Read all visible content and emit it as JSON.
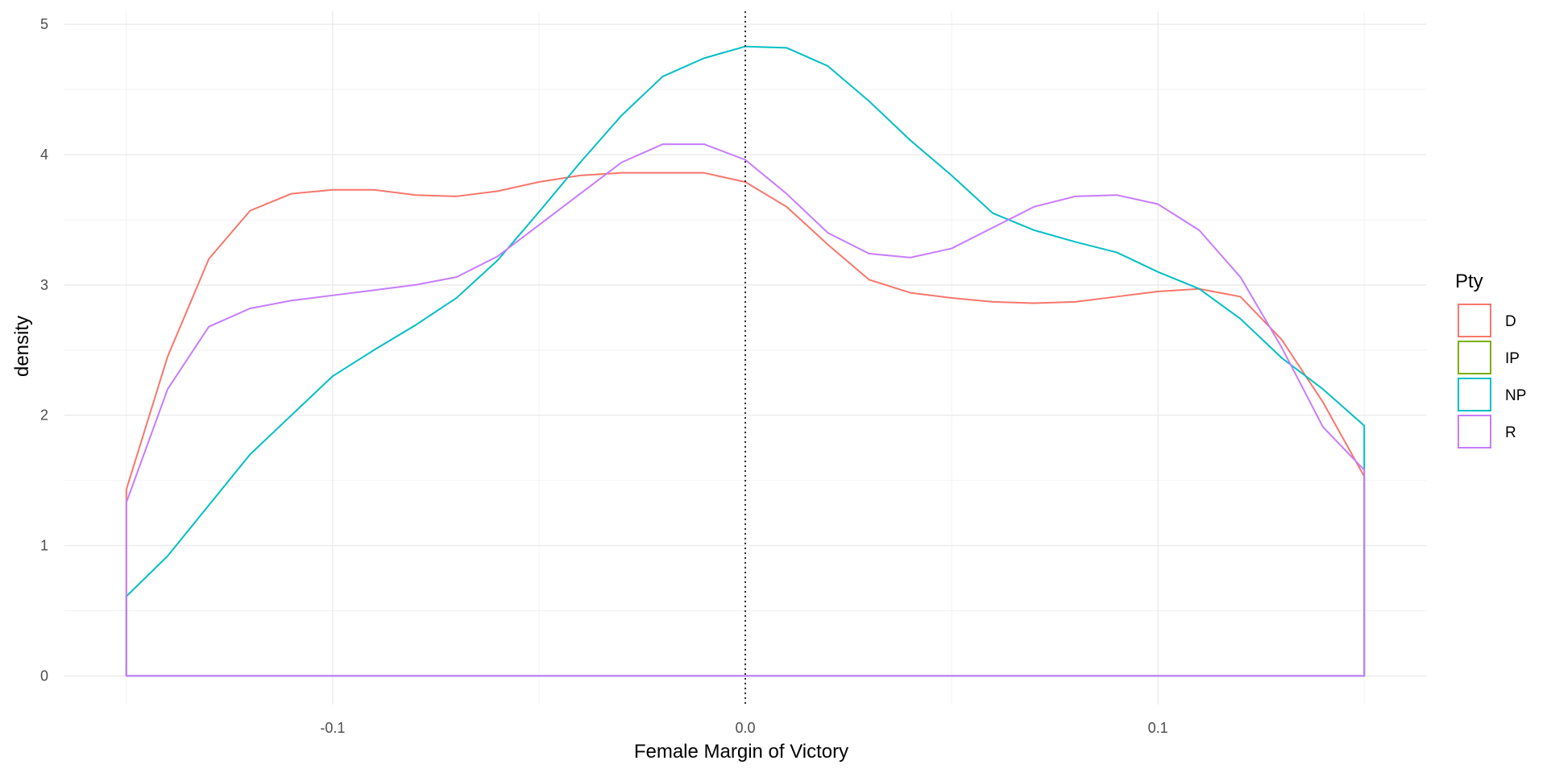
{
  "chart_data": {
    "type": "line",
    "title": "",
    "xlabel": "Female Margin of Victory",
    "ylabel": "density",
    "xlim": [
      -0.165,
      0.165
    ],
    "ylim": [
      -0.22,
      5.1
    ],
    "x_ticks": [
      -0.1,
      0.0,
      0.1
    ],
    "x_tick_labels": [
      "-0.1",
      "0.0",
      "0.1"
    ],
    "y_ticks": [
      0,
      1,
      2,
      3,
      4,
      5
    ],
    "y_tick_labels": [
      "0",
      "1",
      "2",
      "3",
      "4",
      "5"
    ],
    "grid": true,
    "reference_line": {
      "x": 0.0,
      "style": "dotted",
      "color": "#000000"
    },
    "legend": {
      "title": "Pty",
      "position": "right"
    },
    "density_range": [
      -0.15,
      0.15
    ],
    "series": [
      {
        "name": "D",
        "color": "#F8766D",
        "x": [
          -0.15,
          -0.14,
          -0.13,
          -0.12,
          -0.11,
          -0.1,
          -0.09,
          -0.08,
          -0.07,
          -0.06,
          -0.05,
          -0.04,
          -0.03,
          -0.02,
          -0.01,
          0.0,
          0.01,
          0.02,
          0.03,
          0.04,
          0.05,
          0.06,
          0.07,
          0.08,
          0.09,
          0.1,
          0.11,
          0.12,
          0.13,
          0.14,
          0.15
        ],
        "y": [
          1.43,
          2.45,
          3.2,
          3.57,
          3.7,
          3.73,
          3.73,
          3.69,
          3.68,
          3.72,
          3.79,
          3.84,
          3.86,
          3.86,
          3.86,
          3.79,
          3.6,
          3.31,
          3.04,
          2.94,
          2.9,
          2.87,
          2.86,
          2.87,
          2.91,
          2.95,
          2.97,
          2.91,
          2.58,
          2.1,
          1.53
        ]
      },
      {
        "name": "IP",
        "color": "#7CAE00",
        "x": [],
        "y": []
      },
      {
        "name": "NP",
        "color": "#00BFC4",
        "x": [
          -0.15,
          -0.14,
          -0.13,
          -0.12,
          -0.11,
          -0.1,
          -0.09,
          -0.08,
          -0.07,
          -0.06,
          -0.05,
          -0.04,
          -0.03,
          -0.02,
          -0.01,
          0.0,
          0.01,
          0.02,
          0.03,
          0.04,
          0.05,
          0.06,
          0.07,
          0.08,
          0.09,
          0.1,
          0.11,
          0.12,
          0.13,
          0.14,
          0.15
        ],
        "y": [
          0.61,
          0.92,
          1.31,
          1.7,
          2.0,
          2.3,
          2.5,
          2.69,
          2.9,
          3.19,
          3.56,
          3.94,
          4.3,
          4.6,
          4.74,
          4.83,
          4.82,
          4.68,
          4.41,
          4.11,
          3.84,
          3.55,
          3.42,
          3.33,
          3.25,
          3.1,
          2.97,
          2.74,
          2.44,
          2.2,
          1.92
        ]
      },
      {
        "name": "R",
        "color": "#C77CFF",
        "x": [
          -0.15,
          -0.14,
          -0.13,
          -0.12,
          -0.11,
          -0.1,
          -0.09,
          -0.08,
          -0.07,
          -0.06,
          -0.05,
          -0.04,
          -0.03,
          -0.02,
          -0.01,
          0.0,
          0.01,
          0.02,
          0.03,
          0.04,
          0.05,
          0.06,
          0.07,
          0.08,
          0.09,
          0.1,
          0.11,
          0.12,
          0.13,
          0.14,
          0.15
        ],
        "y": [
          1.33,
          2.2,
          2.68,
          2.82,
          2.88,
          2.92,
          2.96,
          3.0,
          3.06,
          3.22,
          3.46,
          3.7,
          3.94,
          4.08,
          4.08,
          3.96,
          3.7,
          3.4,
          3.24,
          3.21,
          3.28,
          3.44,
          3.6,
          3.68,
          3.69,
          3.62,
          3.42,
          3.06,
          2.52,
          1.91,
          1.58
        ]
      }
    ]
  }
}
